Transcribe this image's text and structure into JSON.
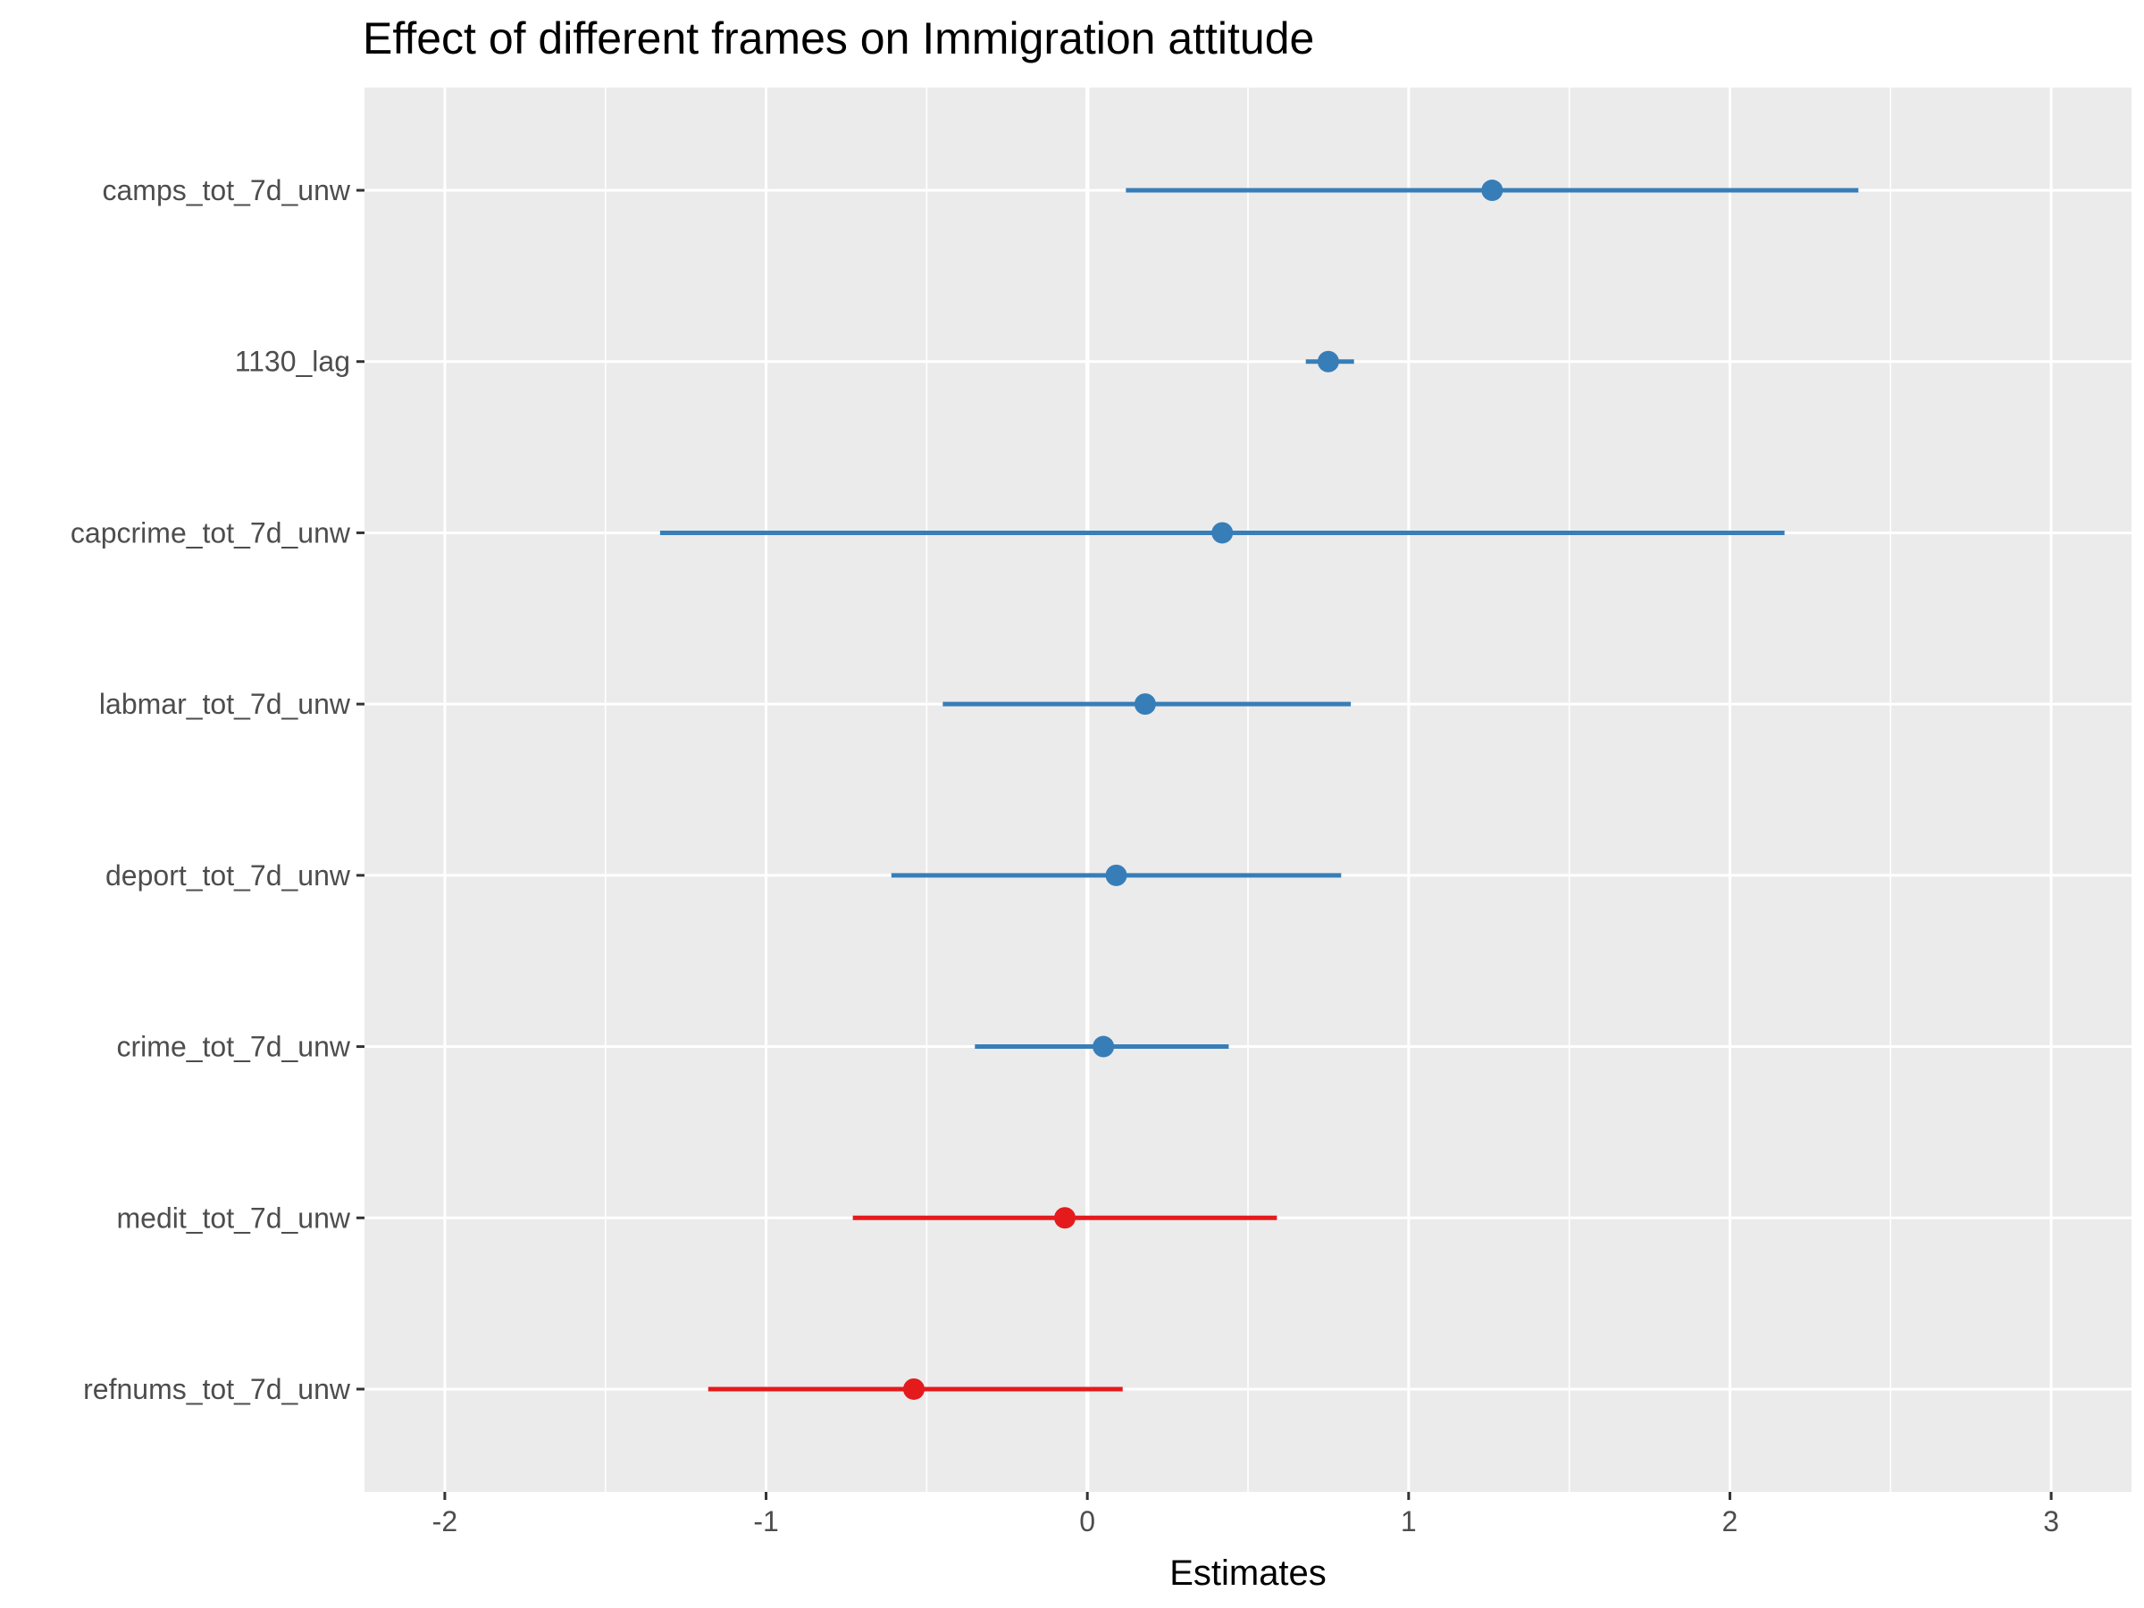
{
  "chart_data": {
    "type": "forest",
    "title": "Effect of different frames on Immigration attitude",
    "xlabel": "Estimates",
    "ylabel": "",
    "xlim": [
      -2.25,
      3.25
    ],
    "x_ticks": [
      -2,
      -1,
      0,
      1,
      2,
      3
    ],
    "x_tick_labels": [
      "-2",
      "-1",
      "0",
      "1",
      "2",
      "3"
    ],
    "grid": true,
    "colors": {
      "positive": "#377eb8",
      "negative": "#e41a1c",
      "panel": "#ebebeb",
      "grid": "#ffffff",
      "tick_text": "#4d4d4d"
    },
    "series": [
      {
        "term": "camps_tot_7d_unw",
        "estimate": 1.26,
        "conf_low": 0.12,
        "conf_high": 2.4,
        "sign": "positive"
      },
      {
        "term": "1130_lag",
        "estimate": 0.75,
        "conf_low": 0.68,
        "conf_high": 0.83,
        "sign": "positive"
      },
      {
        "term": "capcrime_tot_7d_unw",
        "estimate": 0.42,
        "conf_low": -1.33,
        "conf_high": 2.17,
        "sign": "positive"
      },
      {
        "term": "labmar_tot_7d_unw",
        "estimate": 0.18,
        "conf_low": -0.45,
        "conf_high": 0.82,
        "sign": "positive"
      },
      {
        "term": "deport_tot_7d_unw",
        "estimate": 0.09,
        "conf_low": -0.61,
        "conf_high": 0.79,
        "sign": "positive"
      },
      {
        "term": "crime_tot_7d_unw",
        "estimate": 0.05,
        "conf_low": -0.35,
        "conf_high": 0.44,
        "sign": "positive"
      },
      {
        "term": "medit_tot_7d_unw",
        "estimate": -0.07,
        "conf_low": -0.73,
        "conf_high": 0.59,
        "sign": "negative"
      },
      {
        "term": "refnums_tot_7d_unw",
        "estimate": -0.54,
        "conf_low": -1.18,
        "conf_high": 0.11,
        "sign": "negative"
      }
    ]
  }
}
